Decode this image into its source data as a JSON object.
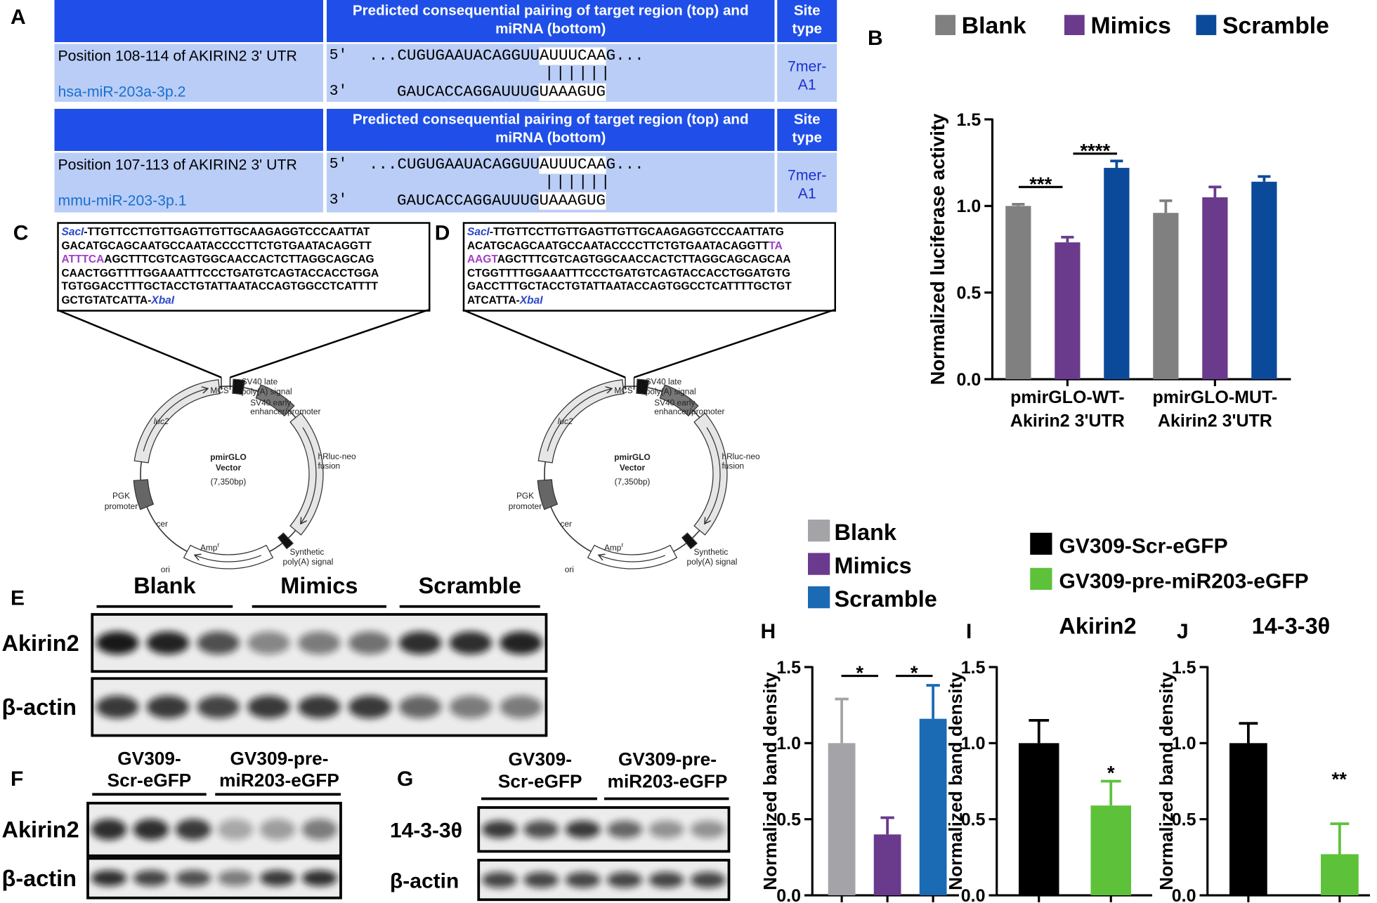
{
  "panels": [
    "A",
    "B",
    "C",
    "D",
    "E",
    "F",
    "G",
    "H",
    "I",
    "J"
  ],
  "alignment": {
    "header": "Predicted consequential pairing of target region (top) and miRNA (bottom)",
    "site_type_header": "Site type",
    "rows": [
      {
        "position": "Position 108-114 of AKIRIN2 3' UTR",
        "mirna": "hsa-miR-203a-3p.2",
        "top_label": "5'",
        "top": [
          "...CUGUGAAUACAGGUU",
          "AUUUCAA",
          "G..."
        ],
        "pairing": "||||||",
        "bottom_label": "3'",
        "bottom": [
          "GAUCACCAGGAUUUG",
          "UAAAGUG"
        ],
        "site": "7mer-A1"
      },
      {
        "position": "Position 107-113 of AKIRIN2 3' UTR",
        "mirna": "mmu-miR-203-3p.1",
        "top_label": "5'",
        "top": [
          "...CUGUGAAUACAGGUU",
          "AUUUCAA",
          "G..."
        ],
        "pairing": "||||||",
        "bottom_label": "3'",
        "bottom": [
          "GAUCACCAGGAUUUG",
          "UAAAGUG"
        ],
        "site": "7mer-A1"
      }
    ]
  },
  "constructs": [
    {
      "lines": [
        [
          {
            "text": "SacI",
            "color": "#2a46c8",
            "italic": true
          },
          {
            "text": "-TTGTTCCTTGTTGAGTTGTTGCAAGAGGTCCCAATTAT"
          }
        ],
        [
          {
            "text": "GACATGCAGCAATGCCAATACCCCTTCTGTGAATACAGGTT"
          }
        ],
        [
          {
            "text": "ATTTCA",
            "color": "#a040c8"
          },
          {
            "text": "AGCTTTCGTCAGTGGCAACCACTCTTAGGCAGCAG"
          }
        ],
        [
          {
            "text": "CAACTGGTTTTGGAAATTTCCCTGATGTCAGTACCACCTGGA"
          }
        ],
        [
          {
            "text": "TGTGGACCTTTGCTACCTGTATTAATACCAGTGGCCTCATTTT"
          }
        ],
        [
          {
            "text": "GCTGTATCATTA-"
          },
          {
            "text": "XbaI",
            "color": "#2a46c8",
            "italic": true
          }
        ]
      ]
    },
    {
      "lines": [
        [
          {
            "text": "SacI",
            "color": "#2a46c8",
            "italic": true
          },
          {
            "text": "-TTGTTCCTTGTTGAGTTGTTGCAAGAGGTCCCAATTATG"
          }
        ],
        [
          {
            "text": "ACATGCAGCAATGCCAATACCCCTTCTGTGAATACAGGTT"
          },
          {
            "text": "TA",
            "color": "#a040c8"
          }
        ],
        [
          {
            "text": "AAGT",
            "color": "#a040c8"
          },
          {
            "text": "AGCTTTCGTCAGTGGCAACCACTCTTAGGCAGCAGCAA"
          }
        ],
        [
          {
            "text": "CTGGTTTTGGAAATTTCCCTGATGTCAGTACCACCTGGATGTG"
          }
        ],
        [
          {
            "text": "GACCTTTGCTACCTGTATTAATACCAGTGGCCTCATTTTGCTGT"
          }
        ],
        [
          {
            "text": "ATCATTA-"
          },
          {
            "text": "XbaI",
            "color": "#2a46c8",
            "italic": true
          }
        ]
      ]
    }
  ],
  "plasmid": {
    "mcs": "MCS",
    "sv40_late": [
      "SV40 late",
      "poly(A) signal"
    ],
    "sv40_early": [
      "SV40 early",
      "enhancer/promoter"
    ],
    "hrluc": [
      "hRluc-neo",
      "fusion"
    ],
    "synthetic": [
      "Synthetic",
      "poly(A) signal"
    ],
    "amp": "Amp",
    "amp_sup": "r",
    "ori": "ori",
    "cer": "cer",
    "pgk": [
      "PGK",
      "promoter"
    ],
    "luc2": "luc2",
    "name": [
      "pmirGLO",
      "Vector"
    ],
    "size": "(7,350bp)"
  },
  "blots": [
    {
      "lanes": [
        "Blank",
        "Mimics",
        "Scramble"
      ],
      "rows": [
        "Akirin2",
        "β-actin"
      ]
    },
    {
      "lanes": [
        "GV309-Scr-eGFP",
        "GV309-pre-miR203-eGFP"
      ],
      "rows": [
        "Akirin2",
        "β-actin"
      ]
    },
    {
      "lanes": [
        "GV309-Scr-eGFP",
        "GV309-pre-miR203-eGFP"
      ],
      "rows": [
        "14-3-3θ",
        "β-actin"
      ]
    }
  ],
  "chart_data": [
    {
      "type": "bar",
      "ylabel": "Normalized luciferase activity",
      "categories": [
        "pmirGLO-WT-Akirin2 3'UTR",
        "pmirGLO-MUT-Akirin2 3'UTR"
      ],
      "series": [
        {
          "name": "Blank",
          "color": "#808080",
          "values": [
            1.0,
            0.96
          ],
          "errors": [
            0.01,
            0.07
          ]
        },
        {
          "name": "Mimics",
          "color": "#6a3a8c",
          "values": [
            0.79,
            1.05
          ],
          "errors": [
            0.03,
            0.06
          ]
        },
        {
          "name": "Scramble",
          "color": "#0b4a9a",
          "values": [
            1.22,
            1.14
          ],
          "errors": [
            0.04,
            0.03
          ]
        }
      ],
      "ylim": [
        0,
        1.5
      ],
      "yticks": [
        {
          "value": 0,
          "label": "0.0"
        },
        0.5,
        {
          "value": 1,
          "label": "1.0"
        },
        1.5
      ],
      "annotations": [
        "***",
        "****"
      ]
    },
    {
      "type": "bar",
      "ylabel": "Normalized band density",
      "categories": [
        null
      ],
      "series": [
        {
          "name": "Blank",
          "color": "#a3a3a8",
          "values": [
            1.0
          ],
          "errors": [
            0.29
          ]
        },
        {
          "name": "Mimics",
          "color": "#6a3a8c",
          "values": [
            0.4
          ],
          "errors": [
            0.11
          ]
        },
        {
          "name": "Scramble",
          "color": "#1a6ab4",
          "values": [
            1.16
          ],
          "errors": [
            0.22
          ]
        }
      ],
      "ylim": [
        0,
        1.5
      ],
      "yticks": [
        {
          "value": 0,
          "label": "0.0"
        },
        0.5,
        {
          "value": 1,
          "label": "1.0"
        },
        1.5
      ],
      "annotations": [
        "*",
        "*"
      ]
    },
    {
      "type": "bar",
      "title": "Akirin2",
      "ylabel": "Normalized band density",
      "categories": [
        null
      ],
      "series": [
        {
          "name": "GV309-Scr-eGFP",
          "color": "#000000",
          "values": [
            1.0
          ],
          "errors": [
            0.15
          ]
        },
        {
          "name": "GV309-pre-miR203-eGFP",
          "color": "#5dc23a",
          "values": [
            0.59
          ],
          "errors": [
            0.16
          ]
        }
      ],
      "ylim": [
        0,
        1.5
      ],
      "yticks": [
        {
          "value": 0,
          "label": "0.0"
        },
        0.5,
        {
          "value": 1,
          "label": "1.0"
        },
        1.5
      ],
      "annotations": [
        "*"
      ]
    },
    {
      "type": "bar",
      "title": "14-3-3θ",
      "ylabel": "Normalized band density",
      "categories": [
        null,
        null
      ],
      "values": [
        1.0,
        0.27
      ],
      "errors": [
        0.13,
        0.2
      ],
      "colors": [
        "#000000",
        "#5dc23a"
      ],
      "ylim": [
        0,
        1.5
      ],
      "yticks": [
        {
          "value": 0,
          "label": "0.0"
        },
        0.5,
        {
          "value": 1,
          "label": "1.0"
        },
        1.5
      ],
      "annotations": [
        "**"
      ]
    }
  ]
}
